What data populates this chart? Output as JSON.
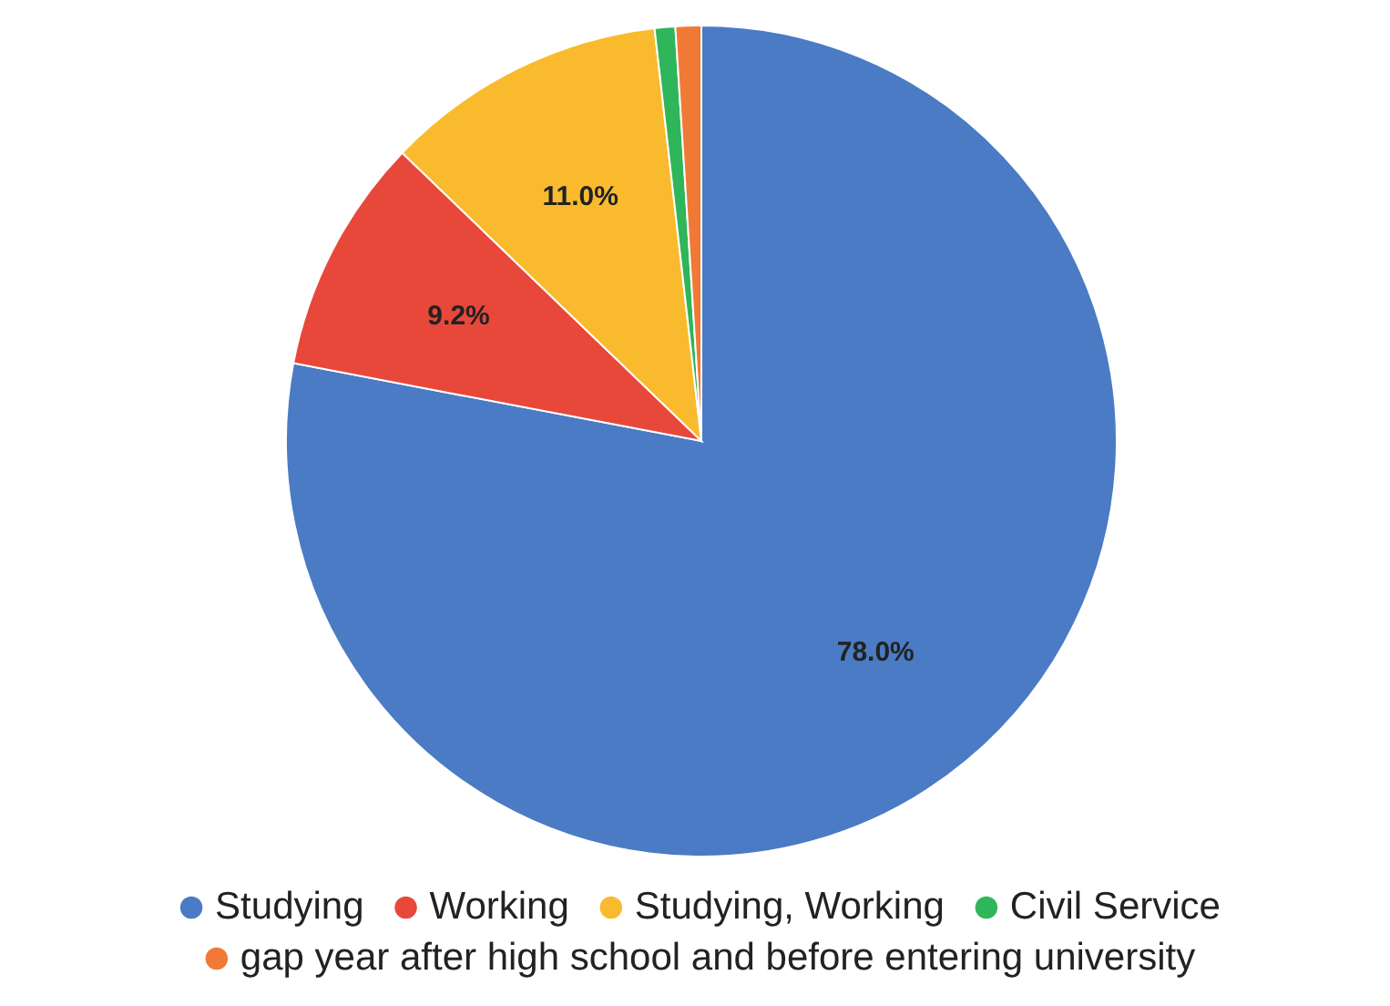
{
  "chart_data": {
    "type": "pie",
    "categories": [
      "Studying",
      "Working",
      "Studying, Working",
      "Civil Service",
      "gap year after high school and before entering university"
    ],
    "values": [
      78.0,
      9.2,
      11.0,
      0.8,
      1.0
    ],
    "colors": [
      "#4a7bc4",
      "#e8483a",
      "#f9bb2d",
      "#2fb55a",
      "#f07a35"
    ],
    "value_labels": [
      "78.0%",
      "9.2%",
      "11.0%",
      null,
      null
    ],
    "legend": "bottom"
  }
}
